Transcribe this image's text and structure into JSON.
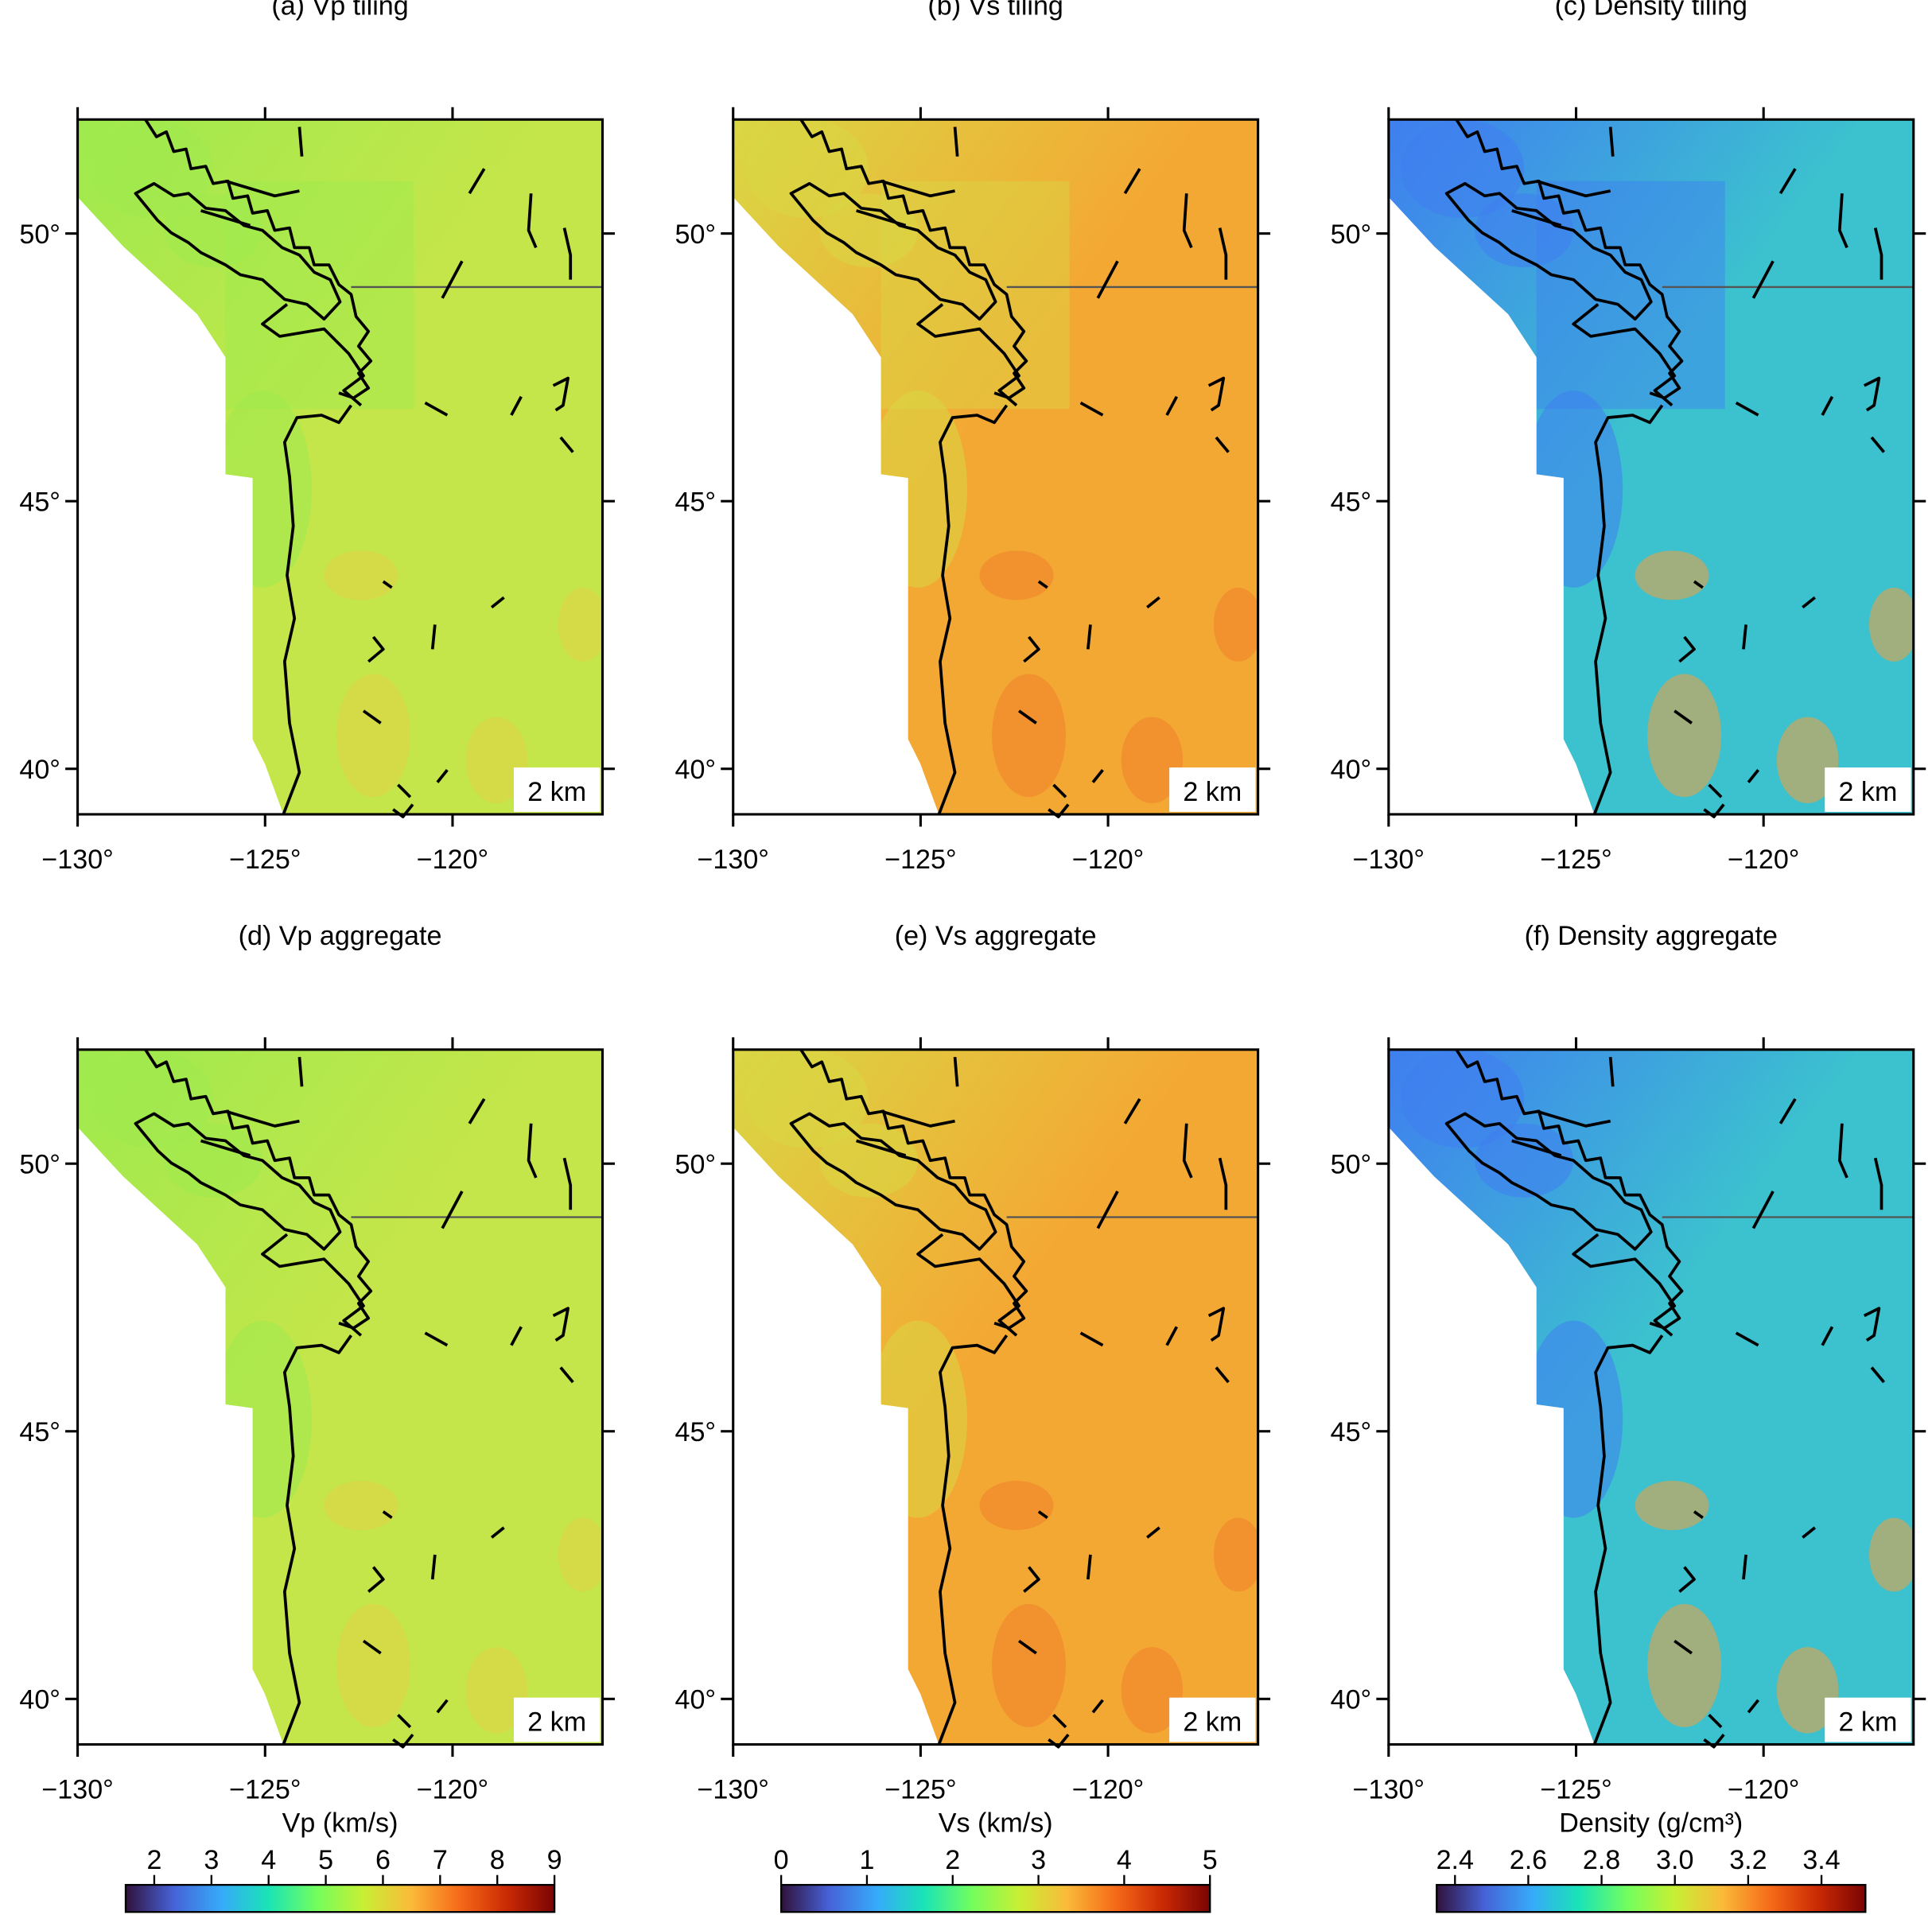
{
  "panels": [
    {
      "title": "(a) Vp tiling",
      "depth_label": "2 km",
      "field_colors": [
        "#c4e64a",
        "#9eea4e",
        "#e3d246"
      ],
      "tiling": true
    },
    {
      "title": "(b) Vs tiling",
      "depth_label": "2 km",
      "field_colors": [
        "#f4a834",
        "#d9d744",
        "#ef7f2a"
      ],
      "tiling": true
    },
    {
      "title": "(c) Density tiling",
      "depth_label": "2 km",
      "field_colors": [
        "#3cc1cf",
        "#3f7ef0",
        "#f2a03a"
      ],
      "tiling": true
    },
    {
      "title": "(d) Vp aggregate",
      "depth_label": "2 km",
      "field_colors": [
        "#c4e64a",
        "#9eea4e",
        "#e3d246"
      ],
      "tiling": false
    },
    {
      "title": "(e) Vs aggregate",
      "depth_label": "2 km",
      "field_colors": [
        "#f4a834",
        "#d9d744",
        "#ef7f2a"
      ],
      "tiling": false
    },
    {
      "title": "(f) Density aggregate",
      "depth_label": "2 km",
      "field_colors": [
        "#3cc1cf",
        "#3f7ef0",
        "#f2a03a"
      ],
      "tiling": false
    }
  ],
  "map": {
    "xlim": [
      -130,
      -116
    ],
    "ylim": [
      39.15,
      52.13
    ],
    "xticks": [
      {
        "value": -130,
        "label": "−130°"
      },
      {
        "value": -125,
        "label": "−125°"
      },
      {
        "value": -120,
        "label": "−120°"
      }
    ],
    "yticks": [
      {
        "value": 40,
        "label": "40°"
      },
      {
        "value": 45,
        "label": "45°"
      },
      {
        "value": 50,
        "label": "50°"
      }
    ]
  },
  "colormap": [
    "#30123b",
    "#4662d7",
    "#36aaf9",
    "#1ae4b6",
    "#72fe5e",
    "#c8ef34",
    "#faba39",
    "#f66b19",
    "#ca2a04",
    "#7a0403"
  ],
  "colorbars": [
    {
      "title": "Vp (km/s)",
      "lim": [
        1.5,
        9
      ],
      "ticks": [
        2,
        3,
        4,
        5,
        6,
        7,
        8,
        9
      ]
    },
    {
      "title": "Vs (km/s)",
      "lim": [
        0,
        5
      ],
      "ticks": [
        0,
        1,
        2,
        3,
        4,
        5
      ]
    },
    {
      "title": "Density (g/cm³)",
      "lim": [
        2.35,
        3.52
      ],
      "ticks": [
        2.4,
        2.6,
        2.8,
        {
          "value": 3.0,
          "label": "3.0"
        },
        3.2,
        3.4
      ]
    }
  ]
}
